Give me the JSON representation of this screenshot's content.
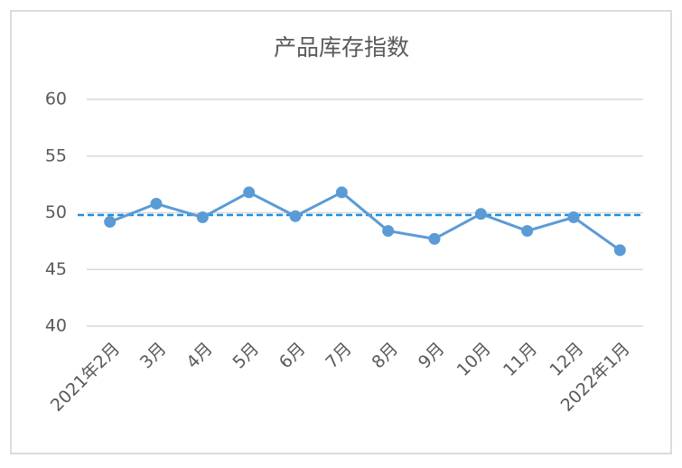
{
  "chart_data": {
    "type": "line",
    "title": "产品库存指数",
    "categories": [
      "2021年2月",
      "3月",
      "4月",
      "5月",
      "6月",
      "7月",
      "8月",
      "9月",
      "10月",
      "11月",
      "12月",
      "2022年1月"
    ],
    "values": [
      49.2,
      50.8,
      49.6,
      51.8,
      49.7,
      51.8,
      48.4,
      47.7,
      49.9,
      48.4,
      49.6,
      46.7
    ],
    "color": "#5b9bd5",
    "reference_line": {
      "value": 49.8,
      "color": "#1f8fe0"
    },
    "ylim": [
      40,
      60
    ],
    "yticks": [
      40,
      45,
      50,
      55,
      60
    ],
    "grid": true
  }
}
